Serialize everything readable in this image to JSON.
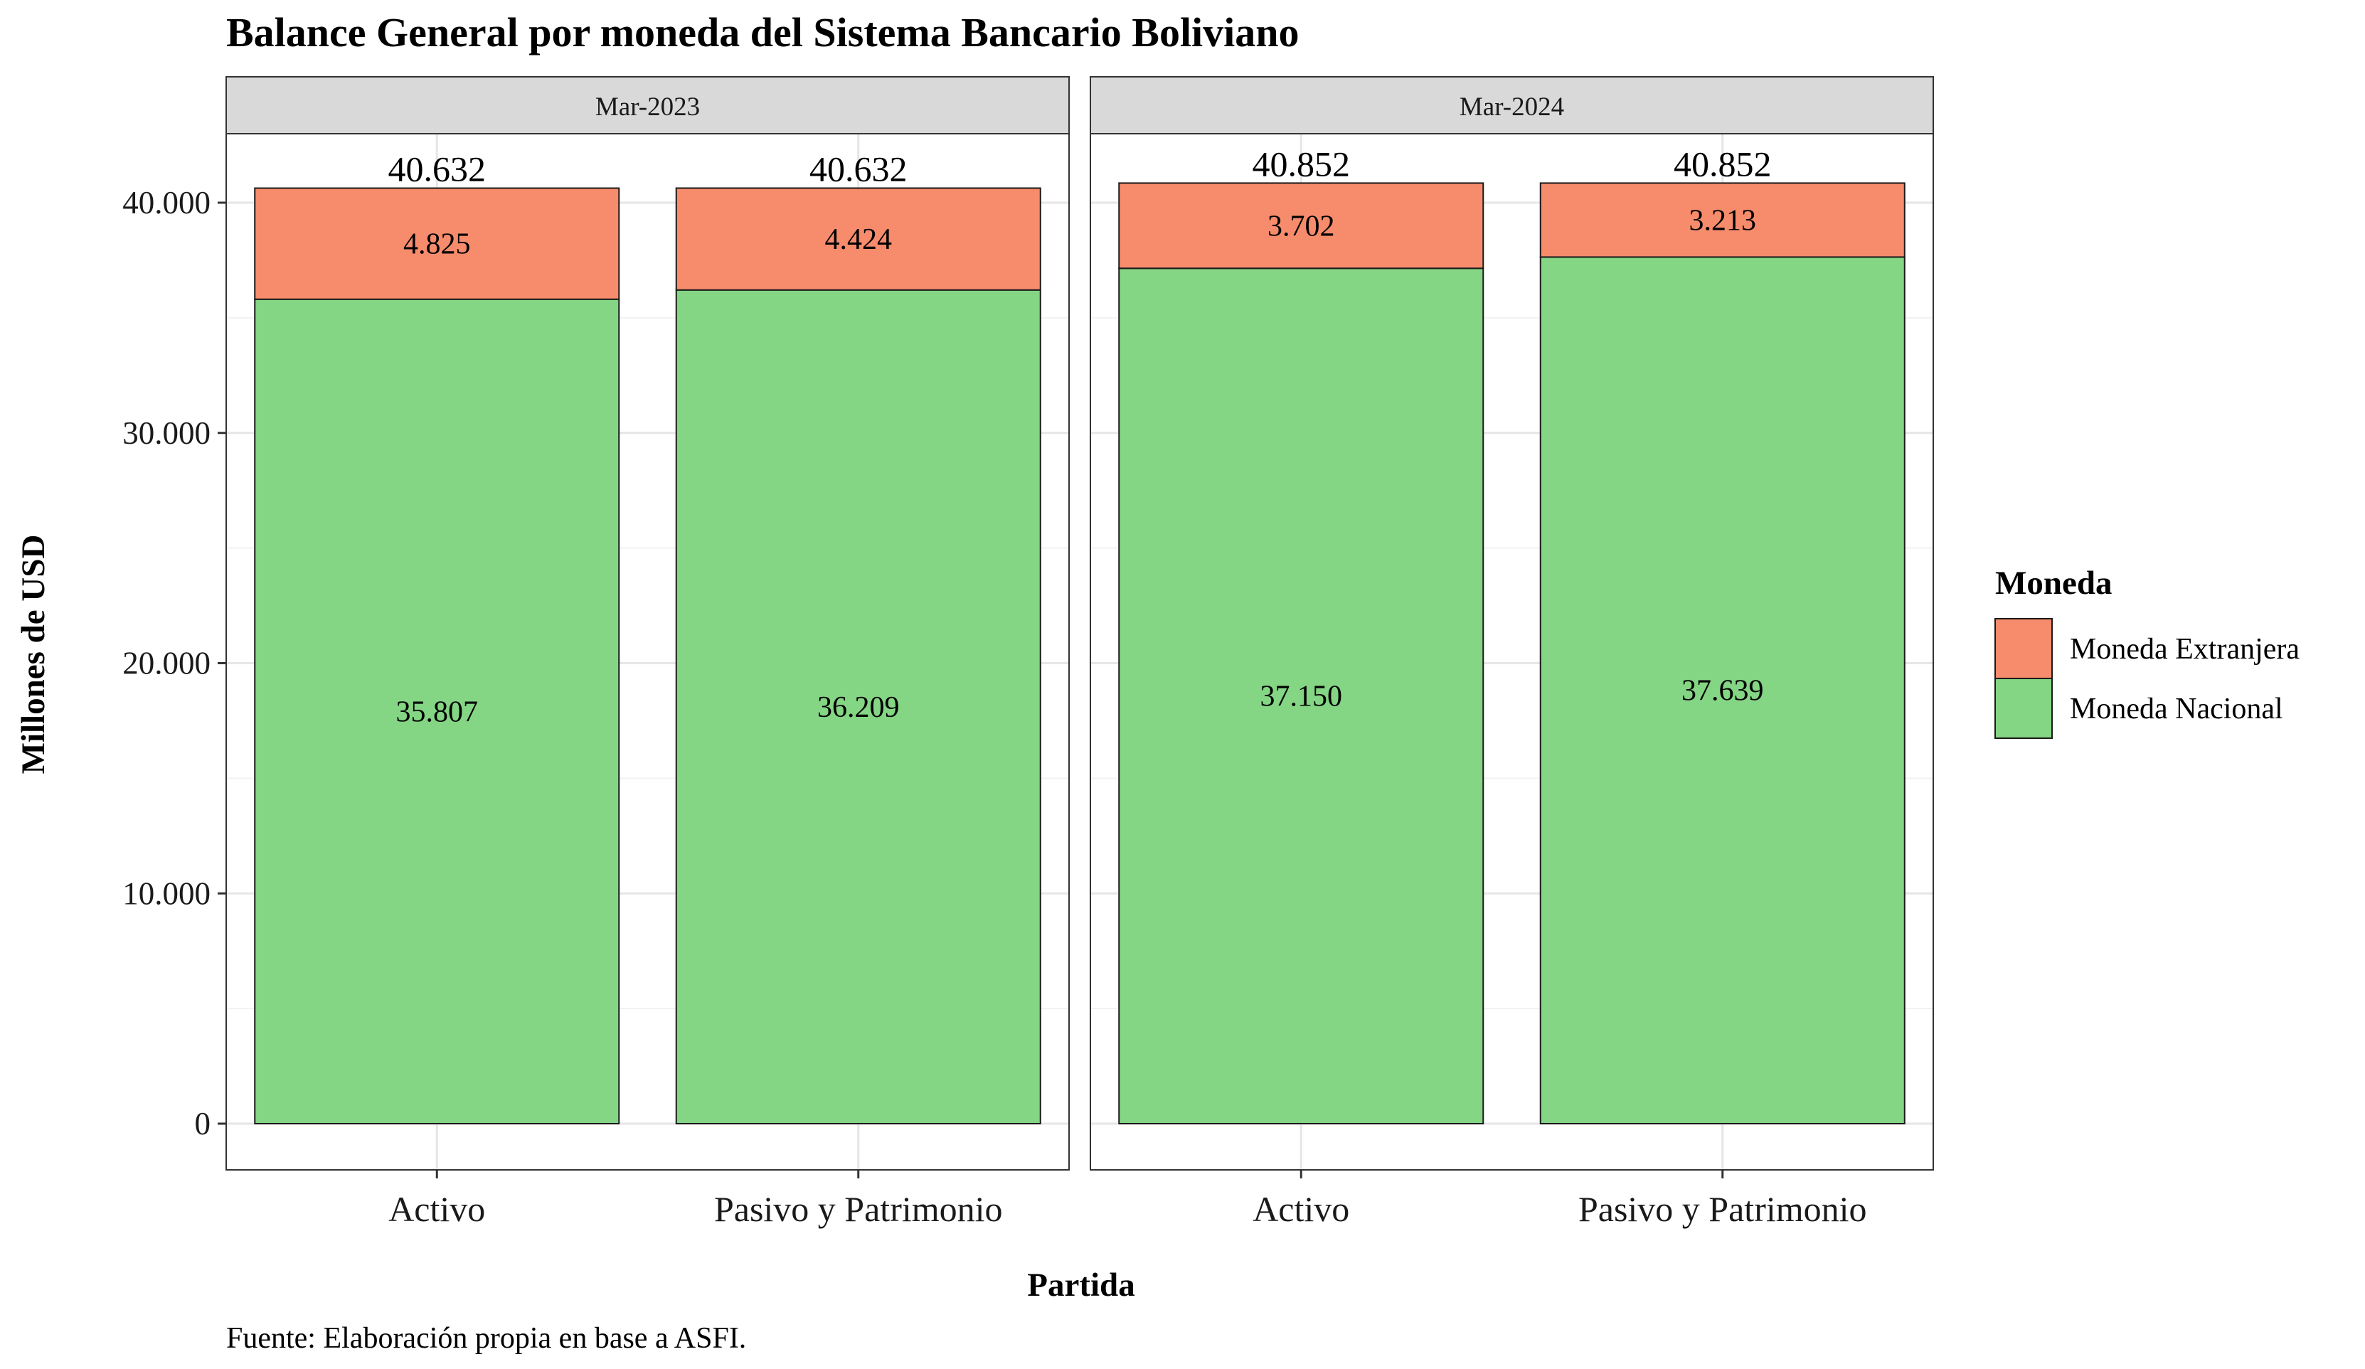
{
  "chart_data": {
    "type": "bar",
    "stacked": true,
    "title": "Balance General por moneda del Sistema Bancario Boliviano",
    "xlabel": "Partida",
    "ylabel": "Millones de USD",
    "caption": "Fuente: Elaboración propia en base a ASFI.",
    "ylim": [
      0,
      43000
    ],
    "yticks": [
      0,
      10000,
      20000,
      30000,
      40000
    ],
    "ytick_labels": [
      "0",
      "10.000",
      "20.000",
      "30.000",
      "40.000"
    ],
    "grid": true,
    "legend": {
      "title": "Moneda",
      "position": "right",
      "entries": [
        "Moneda Extranjera",
        "Moneda Nacional"
      ]
    },
    "categories": [
      "Activo",
      "Pasivo y Patrimonio"
    ],
    "colors": {
      "Moneda Extranjera": "#F78C6C",
      "Moneda Nacional": "#84D584"
    },
    "facets": [
      {
        "name": "Mar-2023",
        "totals": [
          40632,
          40632
        ],
        "total_labels": [
          "40.632",
          "40.632"
        ],
        "series": [
          {
            "name": "Moneda Nacional",
            "values": [
              35807,
              36209
            ],
            "labels": [
              "35.807",
              "36.209"
            ]
          },
          {
            "name": "Moneda Extranjera",
            "values": [
              4825,
              4424
            ],
            "labels": [
              "4.825",
              "4.424"
            ]
          }
        ]
      },
      {
        "name": "Mar-2024",
        "totals": [
          40852,
          40852
        ],
        "total_labels": [
          "40.852",
          "40.852"
        ],
        "series": [
          {
            "name": "Moneda Nacional",
            "values": [
              37150,
              37639
            ],
            "labels": [
              "37.150",
              "37.639"
            ]
          },
          {
            "name": "Moneda Extranjera",
            "values": [
              3702,
              3213
            ],
            "labels": [
              "3.702",
              "3.213"
            ]
          }
        ]
      }
    ]
  }
}
